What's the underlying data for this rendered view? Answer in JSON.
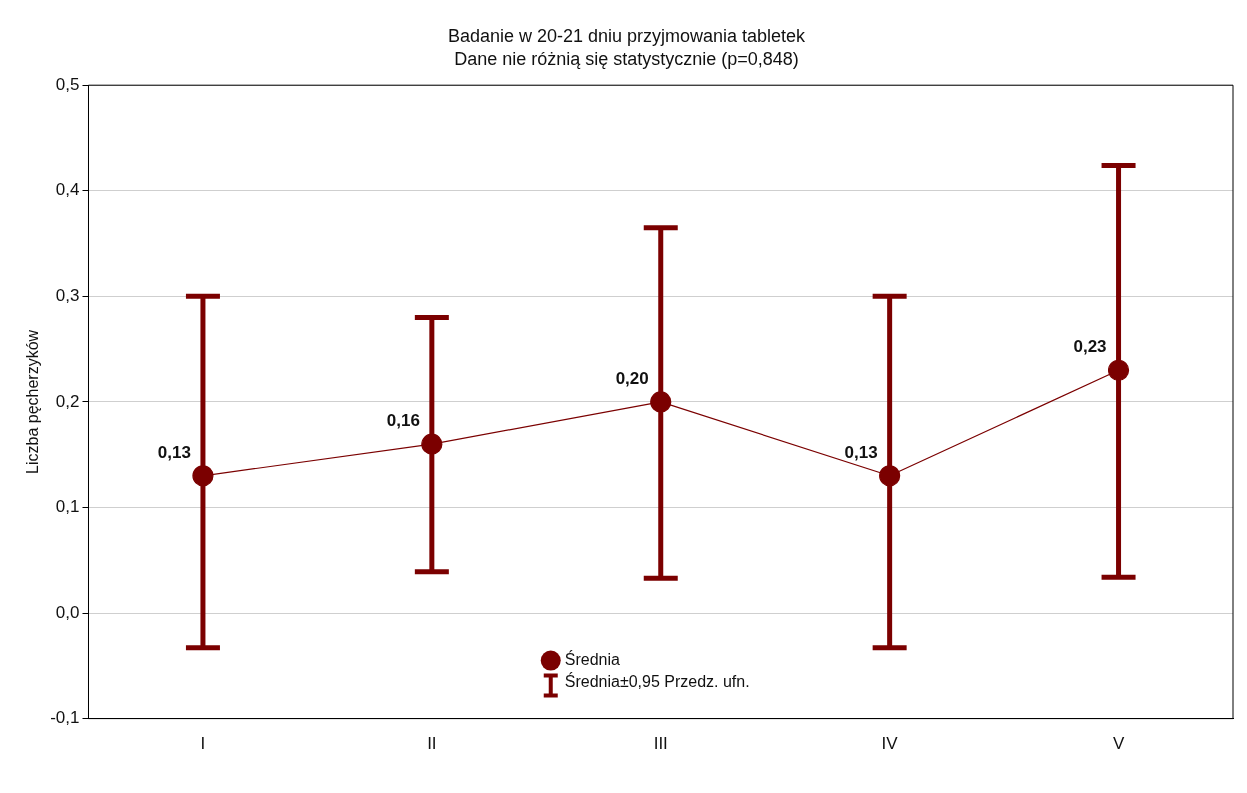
{
  "chart_data": {
    "type": "line",
    "title": "Badanie w 20-21 dniu przyjmowania tabletek",
    "subtitle": "Dane nie różnią się statystycznie (p=0,848)",
    "ylabel": "Liczba pęcherzyków",
    "categories": [
      "I",
      "II",
      "III",
      "IV",
      "V"
    ],
    "series": [
      {
        "name": "Średnia",
        "color": "#7b0000",
        "values": [
          0.13,
          0.16,
          0.2,
          0.13,
          0.23
        ],
        "errors": [
          [
            -0.033,
            0.3
          ],
          [
            0.039,
            0.28
          ],
          [
            0.033,
            0.365
          ],
          [
            -0.033,
            0.3
          ],
          [
            0.034,
            0.424
          ]
        ],
        "value_labels": [
          "0,13",
          "0,16",
          "0,20",
          "0,13",
          "0,23"
        ]
      }
    ],
    "annotations": [
      "Średnia±0,95 Przedz. ufn."
    ],
    "ylim": [
      -0.1,
      0.5
    ],
    "yticks": [
      {
        "value": -0.1,
        "label": "-0,1"
      },
      {
        "value": 0,
        "label": "0,0"
      },
      {
        "value": 0.1,
        "label": "0,1"
      },
      {
        "value": 0.2,
        "label": "0,2"
      },
      {
        "value": 0.3,
        "label": "0,3"
      },
      {
        "value": 0.4,
        "label": "0,4"
      },
      {
        "value": 0.5,
        "label": "0,5"
      }
    ],
    "grid": "y",
    "legend": "bottom",
    "marker": "circle",
    "line_style": "solid"
  }
}
